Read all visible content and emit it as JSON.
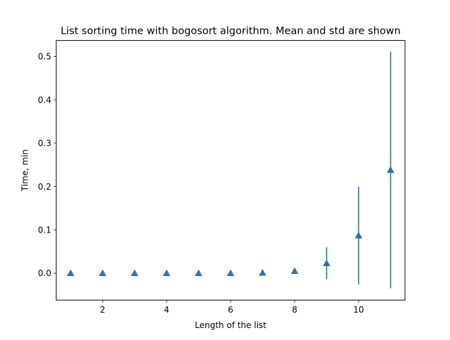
{
  "chart_data": {
    "type": "scatter",
    "title": "List sorting time with bogosort algorithm. Mean and std are shown",
    "xlabel": "Length of the list",
    "ylabel": "Time, min",
    "x": [
      1,
      2,
      3,
      4,
      5,
      6,
      7,
      8,
      9,
      10,
      11
    ],
    "y": [
      0.0,
      0.0,
      0.0,
      0.0,
      0.0,
      0.0,
      0.001,
      0.005,
      0.023,
      0.087,
      0.238
    ],
    "yerr": [
      0.0,
      0.0,
      0.0,
      0.0,
      0.0,
      0.0,
      0.001,
      0.004,
      0.037,
      0.113,
      0.273
    ],
    "marker": "triangle-up",
    "color": "#1f77b4",
    "xlim": [
      0.55,
      11.45
    ],
    "ylim": [
      -0.062,
      0.537
    ],
    "xticks": [
      2,
      4,
      6,
      8,
      10
    ],
    "yticks": [
      0.0,
      0.1,
      0.2,
      0.3,
      0.4,
      0.5
    ],
    "xtick_labels": [
      "2",
      "4",
      "6",
      "8",
      "10"
    ],
    "ytick_labels": [
      "0.0",
      "0.1",
      "0.2",
      "0.3",
      "0.4",
      "0.5"
    ],
    "grid": false,
    "legend": false
  }
}
